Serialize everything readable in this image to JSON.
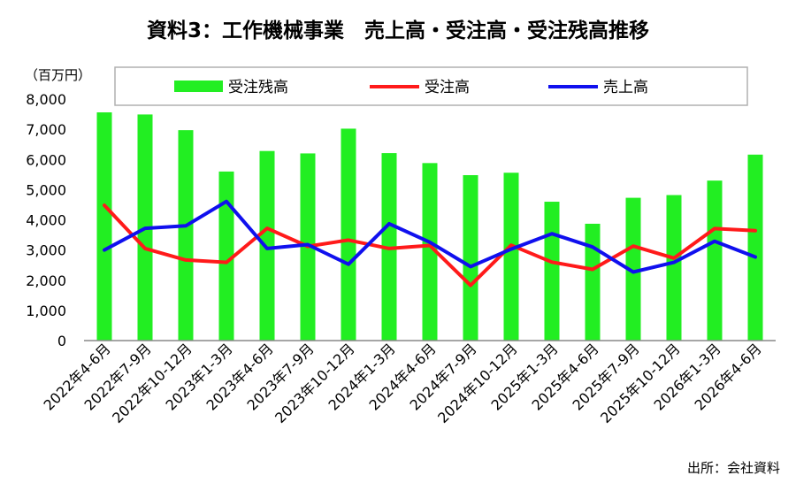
{
  "chart_data": {
    "type": "bar",
    "title": "資料3：工作機械事業　売上高・受注高・受注残高推移",
    "ylabel": "（百万円）",
    "source": "出所：会社資料",
    "ylim": [
      0,
      8000
    ],
    "yticks": [
      "8,000",
      "7,000",
      "6,000",
      "5,000",
      "4,000",
      "3,000",
      "2,000",
      "1,000",
      "0"
    ],
    "ytick_values": [
      8000,
      7000,
      6000,
      5000,
      4000,
      3000,
      2000,
      1000,
      0
    ],
    "categories": [
      "2022年4-6月",
      "2022年7-9月",
      "2022年10-12月",
      "2023年1-3月",
      "2023年4-6月",
      "2023年7-9月",
      "2023年10-12月",
      "2024年1-3月",
      "2024年4-6月",
      "2024年7-9月",
      "2024年10-12月",
      "2025年1-3月",
      "2025年4-6月",
      "2025年7-9月",
      "2025年10-12月",
      "2026年1-3月",
      "2026年4-6月"
    ],
    "legend_position": "top",
    "grid": false,
    "series": [
      {
        "name": "受注残高",
        "type": "bar",
        "color": "#22ee22",
        "values": [
          7560,
          7490,
          6970,
          5600,
          6280,
          6200,
          7020,
          6210,
          5880,
          5480,
          5560,
          4600,
          3870,
          4730,
          4820,
          5300,
          6160
        ]
      },
      {
        "name": "受注高",
        "type": "line",
        "color": "#ff1a1a",
        "values": [
          4480,
          3050,
          2670,
          2590,
          3720,
          3120,
          3330,
          3050,
          3150,
          1830,
          3160,
          2600,
          2360,
          3130,
          2730,
          3710,
          3640
        ]
      },
      {
        "name": "売上高",
        "type": "line",
        "color": "#1010ee",
        "values": [
          3000,
          3720,
          3800,
          4610,
          3050,
          3180,
          2530,
          3870,
          3260,
          2450,
          3030,
          3540,
          3100,
          2270,
          2590,
          3290,
          2770
        ]
      }
    ]
  }
}
